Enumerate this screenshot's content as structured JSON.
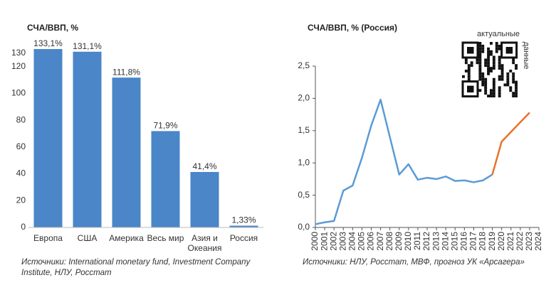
{
  "chart_data": [
    {
      "type": "bar",
      "title": "СЧА/ВВП, %",
      "categories": [
        "Европа",
        "США",
        "Америка",
        "Весь мир",
        "Азия и Океания",
        "Россия"
      ],
      "values": [
        133.1,
        131.1,
        111.8,
        71.9,
        41.4,
        1.33
      ],
      "value_labels": [
        "133,1%",
        "131,1%",
        "111,8%",
        "71,9%",
        "41,4%",
        "1,33%"
      ],
      "color": "#4a86c8",
      "ylim": [
        0,
        140
      ],
      "yticks": [
        0,
        20,
        40,
        60,
        80,
        100,
        120,
        130
      ],
      "source": "Источники: International monetary fund, Investment Company Institute, НЛУ, Росстат"
    },
    {
      "type": "line",
      "title": "СЧА/ВВП, % (Россия)",
      "x": [
        2000,
        2001,
        2002,
        2003,
        2004,
        2005,
        2006,
        2007,
        2008,
        2009,
        2010,
        2011,
        2012,
        2013,
        2014,
        2015,
        2016,
        2017,
        2018,
        2019,
        2020,
        2021,
        2022,
        2023,
        2024
      ],
      "xlim": [
        2000,
        2024
      ],
      "series": [
        {
          "color": "#5b9bd5",
          "values": [
            0.05,
            0.08,
            0.1,
            0.57,
            0.65,
            1.08,
            1.58,
            1.98,
            1.4,
            0.82,
            0.98,
            0.74,
            0.77,
            0.75,
            0.79,
            0.72,
            0.73,
            0.7,
            0.73,
            0.82,
            null,
            null,
            null,
            null,
            null
          ]
        },
        {
          "color": "#e8722c",
          "values": [
            null,
            null,
            null,
            null,
            null,
            null,
            null,
            null,
            null,
            null,
            null,
            null,
            null,
            null,
            null,
            null,
            null,
            null,
            null,
            0.82,
            1.33,
            1.48,
            1.63,
            1.78,
            null
          ]
        }
      ],
      "ylim": [
        0,
        2.5
      ],
      "yticks": [
        {
          "value": 0,
          "label": "0,0"
        },
        {
          "value": 0.5,
          "label": "0,5"
        },
        {
          "value": 1,
          "label": "1,0"
        },
        {
          "value": 1.5,
          "label": "1,5"
        },
        {
          "value": 2,
          "label": "2,0"
        },
        {
          "value": 2.5,
          "label": "2,5"
        }
      ],
      "source": "Источники: НЛУ, Росстат, МВФ, прогноз УК «Арсагера»"
    }
  ],
  "qr": {
    "caption_top": "актуальные",
    "caption_side": "данные"
  }
}
